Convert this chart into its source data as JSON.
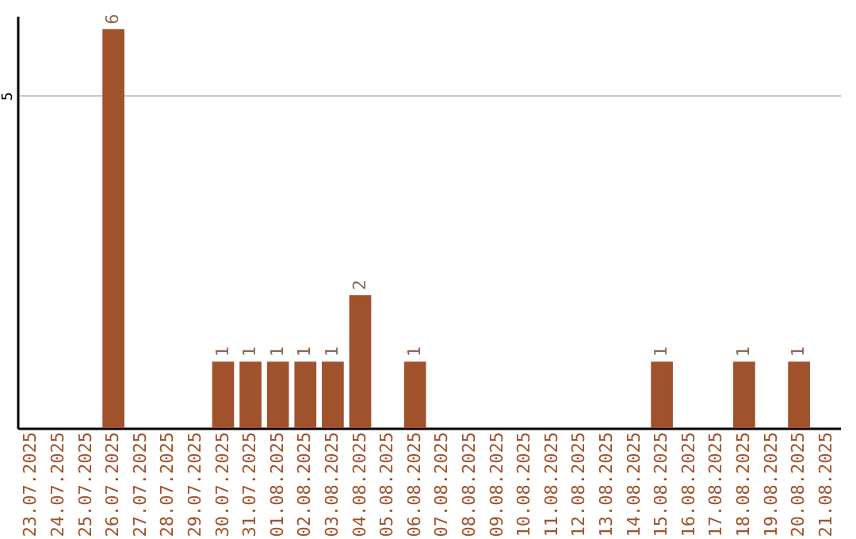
{
  "chart_data": {
    "type": "bar",
    "categories": [
      "23.07.2025",
      "24.07.2025",
      "25.07.2025",
      "26.07.2025",
      "27.07.2025",
      "28.07.2025",
      "29.07.2025",
      "30.07.2025",
      "31.07.2025",
      "01.08.2025",
      "02.08.2025",
      "03.08.2025",
      "04.08.2025",
      "05.08.2025",
      "06.08.2025",
      "07.08.2025",
      "08.08.2025",
      "09.08.2025",
      "10.08.2025",
      "11.08.2025",
      "12.08.2025",
      "13.08.2025",
      "14.08.2025",
      "15.08.2025",
      "16.08.2025",
      "17.08.2025",
      "18.08.2025",
      "19.08.2025",
      "20.08.2025",
      "21.08.2025"
    ],
    "values": [
      0,
      0,
      0,
      6,
      0,
      0,
      0,
      1,
      1,
      1,
      1,
      1,
      2,
      0,
      1,
      0,
      0,
      0,
      0,
      0,
      0,
      0,
      0,
      1,
      0,
      0,
      1,
      0,
      1,
      0
    ],
    "value_labels": [
      null,
      null,
      null,
      "6",
      null,
      null,
      null,
      "1",
      "1",
      "1",
      "1",
      "1",
      "2",
      null,
      "1",
      null,
      null,
      null,
      null,
      null,
      null,
      null,
      null,
      "1",
      null,
      null,
      "1",
      null,
      "1",
      null
    ],
    "color": "#a0522d",
    "ylim": [
      0,
      6.2
    ],
    "yticks": [
      5
    ],
    "grid": "y"
  }
}
